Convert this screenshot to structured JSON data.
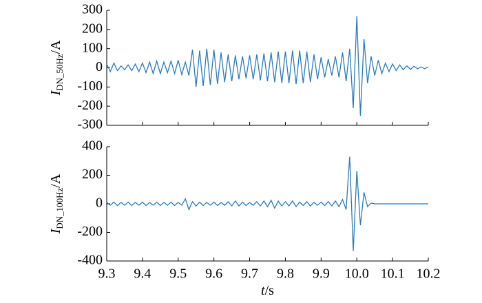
{
  "chart_data": [
    {
      "type": "line",
      "ylabel": "I",
      "ylabel_sub": "DN_50Hz",
      "ylabel_unit": "/A",
      "xlim": [
        9.3,
        10.2
      ],
      "xticks": [
        9.3,
        9.4,
        9.5,
        9.6,
        9.7,
        9.8,
        9.9,
        10.0,
        10.1,
        10.2
      ],
      "ylim": [
        -300,
        300
      ],
      "yticks": [
        -300,
        -200,
        -100,
        0,
        100,
        200,
        300
      ],
      "x": [
        9.3,
        9.31,
        9.32,
        9.33,
        9.34,
        9.35,
        9.36,
        9.37,
        9.38,
        9.39,
        9.4,
        9.41,
        9.42,
        9.43,
        9.44,
        9.45,
        9.46,
        9.47,
        9.48,
        9.49,
        9.5,
        9.51,
        9.52,
        9.53,
        9.54,
        9.55,
        9.56,
        9.57,
        9.58,
        9.59,
        9.6,
        9.61,
        9.62,
        9.63,
        9.64,
        9.65,
        9.66,
        9.67,
        9.68,
        9.69,
        9.7,
        9.71,
        9.72,
        9.73,
        9.74,
        9.75,
        9.76,
        9.77,
        9.78,
        9.79,
        9.8,
        9.81,
        9.82,
        9.83,
        9.84,
        9.85,
        9.86,
        9.87,
        9.88,
        9.89,
        9.9,
        9.91,
        9.92,
        9.93,
        9.94,
        9.95,
        9.96,
        9.97,
        9.98,
        9.99,
        10.0,
        10.01,
        10.02,
        10.03,
        10.04,
        10.05,
        10.06,
        10.07,
        10.08,
        10.09,
        10.1,
        10.11,
        10.12,
        10.13,
        10.14,
        10.15,
        10.16,
        10.17,
        10.18,
        10.19,
        10.2
      ],
      "series": [
        {
          "color": "#2b7bba",
          "values": [
            20,
            -20,
            25,
            -15,
            10,
            -10,
            15,
            -15,
            20,
            -20,
            25,
            -25,
            30,
            -30,
            35,
            -30,
            30,
            -25,
            35,
            -30,
            40,
            -35,
            30,
            -40,
            95,
            -100,
            90,
            -95,
            100,
            -90,
            95,
            -85,
            80,
            -75,
            70,
            -70,
            65,
            -60,
            60,
            -55,
            65,
            -60,
            70,
            -65,
            75,
            -70,
            80,
            -75,
            85,
            -80,
            85,
            -80,
            90,
            -85,
            90,
            -80,
            85,
            -75,
            70,
            -60,
            55,
            -50,
            45,
            -40,
            60,
            -50,
            80,
            -70,
            100,
            -210,
            270,
            -250,
            150,
            -80,
            60,
            -40,
            40,
            -30,
            25,
            -20,
            20,
            -15,
            15,
            -10,
            10,
            -8,
            8,
            -5,
            5,
            -5,
            5
          ]
        }
      ]
    },
    {
      "type": "line",
      "ylabel": "I",
      "ylabel_sub": "DN_100Hz",
      "ylabel_unit": "/A",
      "xlabel_var": "t",
      "xlabel_unit": "/s",
      "xlim": [
        9.3,
        10.2
      ],
      "xticks": [
        9.3,
        9.4,
        9.5,
        9.6,
        9.7,
        9.8,
        9.9,
        {
          "value": 10.0,
          "label": "10.0"
        },
        10.1,
        10.2
      ],
      "ylim": [
        -400,
        400
      ],
      "yticks": [
        -400,
        -200,
        0,
        200,
        400
      ],
      "x": [
        9.3,
        9.31,
        9.32,
        9.33,
        9.34,
        9.35,
        9.36,
        9.37,
        9.38,
        9.39,
        9.4,
        9.41,
        9.42,
        9.43,
        9.44,
        9.45,
        9.46,
        9.47,
        9.48,
        9.49,
        9.5,
        9.51,
        9.52,
        9.53,
        9.54,
        9.55,
        9.56,
        9.57,
        9.58,
        9.59,
        9.6,
        9.61,
        9.62,
        9.63,
        9.64,
        9.65,
        9.66,
        9.67,
        9.68,
        9.69,
        9.7,
        9.71,
        9.72,
        9.73,
        9.74,
        9.75,
        9.76,
        9.77,
        9.78,
        9.79,
        9.8,
        9.81,
        9.82,
        9.83,
        9.84,
        9.85,
        9.86,
        9.87,
        9.88,
        9.89,
        9.9,
        9.91,
        9.92,
        9.93,
        9.94,
        9.95,
        9.96,
        9.97,
        9.98,
        9.99,
        10.0,
        10.01,
        10.02,
        10.03,
        10.04,
        10.05,
        10.06,
        10.07,
        10.08,
        10.09,
        10.1,
        10.11,
        10.12,
        10.13,
        10.14,
        10.15,
        10.16,
        10.17,
        10.18,
        10.19,
        10.2
      ],
      "series": [
        {
          "color": "#2b7bba",
          "values": [
            10,
            -10,
            12,
            -12,
            10,
            -10,
            12,
            -12,
            10,
            -10,
            12,
            -12,
            10,
            -10,
            12,
            -12,
            10,
            -10,
            12,
            -12,
            10,
            -10,
            35,
            -40,
            15,
            -15,
            12,
            -12,
            10,
            -10,
            12,
            -12,
            10,
            -10,
            15,
            -15,
            20,
            -15,
            12,
            -12,
            10,
            -10,
            15,
            -15,
            20,
            -20,
            25,
            -30,
            20,
            -15,
            15,
            -15,
            20,
            -20,
            12,
            -12,
            15,
            -15,
            10,
            -10,
            12,
            -12,
            15,
            -15,
            20,
            -20,
            30,
            -40,
            330,
            -330,
            230,
            -150,
            80,
            -20,
            5,
            0,
            0,
            0,
            0,
            0,
            0,
            0,
            0,
            0,
            0,
            0,
            0,
            0,
            0,
            0,
            0
          ]
        }
      ]
    }
  ]
}
